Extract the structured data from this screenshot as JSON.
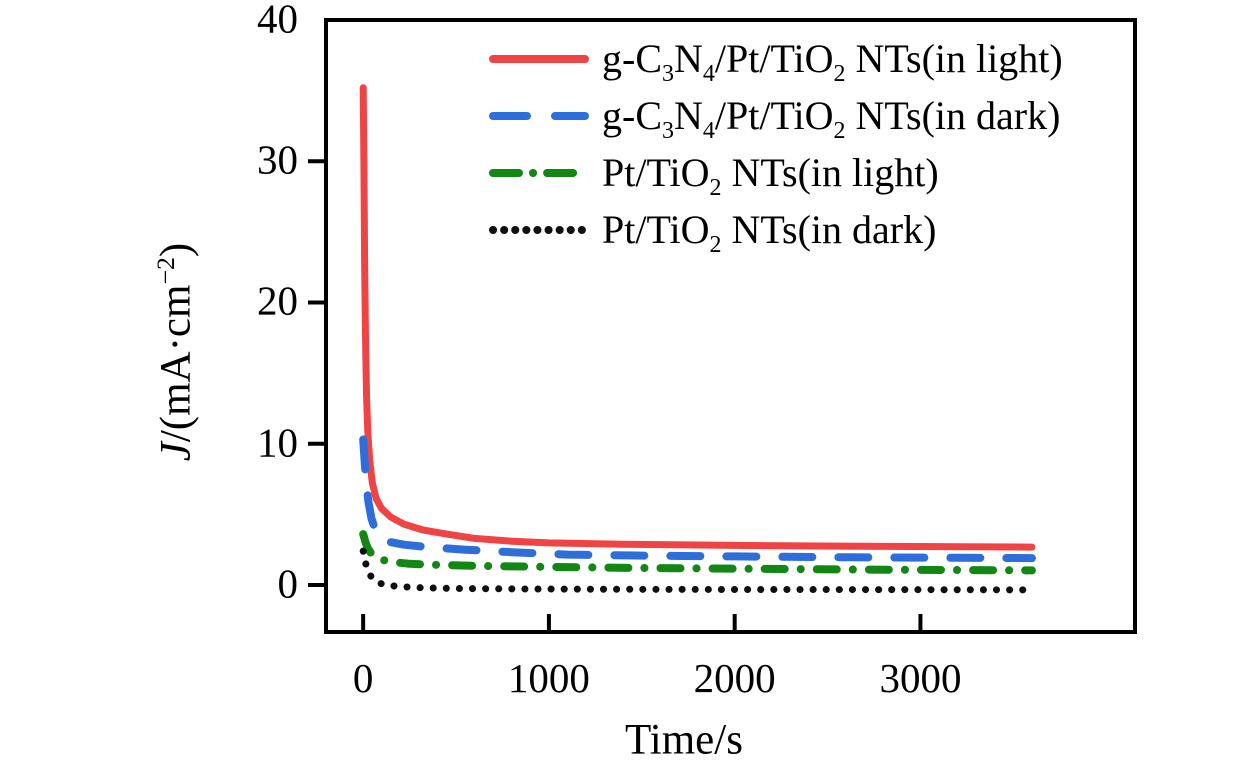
{
  "figure": {
    "background": "#ffffff",
    "frame_color": "#000000",
    "text_color": "#000000"
  },
  "chart_data": {
    "type": "line",
    "title": "",
    "xlabel": "Time/s",
    "ylabel": "J/(mA·cm⁻²)",
    "ylabel_rich": "*J*/(mA·cm^−2^)",
    "xlim": [
      -200,
      4155
    ],
    "ylim": [
      -3.33,
      40
    ],
    "x_ticks": [
      0,
      1000,
      2000,
      3000
    ],
    "y_ticks": [
      0,
      10,
      20,
      30,
      40
    ],
    "grid": false,
    "legend_position": "upper-left-inside",
    "series": [
      {
        "name": "g-C₃N₄/Pt/TiO₂ NTs(in light)",
        "label_rich": "g-C~3~N~4~/Pt/TiO~2~ NTs(in light)",
        "color": "#f04444",
        "style": "solid",
        "points": [
          [
            0,
            35.2
          ],
          [
            4,
            30
          ],
          [
            8,
            23
          ],
          [
            12,
            18
          ],
          [
            18,
            13.5
          ],
          [
            25,
            10.8
          ],
          [
            35,
            8.8
          ],
          [
            50,
            7.2
          ],
          [
            70,
            6.1
          ],
          [
            100,
            5.4
          ],
          [
            150,
            4.8
          ],
          [
            220,
            4.3
          ],
          [
            320,
            3.9
          ],
          [
            450,
            3.6
          ],
          [
            600,
            3.3
          ],
          [
            800,
            3.1
          ],
          [
            1000,
            2.98
          ],
          [
            1400,
            2.88
          ],
          [
            2000,
            2.8
          ],
          [
            2800,
            2.73
          ],
          [
            3600,
            2.68
          ]
        ]
      },
      {
        "name": "g-C₃N₄/Pt/TiO₂ NTs(in dark)",
        "label_rich": "g-C~3~N~4~/Pt/TiO~2~ NTs(in dark)",
        "color": "#2e6edb",
        "style": "dashed",
        "points": [
          [
            0,
            10.3
          ],
          [
            8,
            8.8
          ],
          [
            16,
            7.3
          ],
          [
            28,
            5.9
          ],
          [
            45,
            4.7
          ],
          [
            65,
            3.9
          ],
          [
            95,
            3.4
          ],
          [
            140,
            3.05
          ],
          [
            220,
            2.85
          ],
          [
            350,
            2.68
          ],
          [
            550,
            2.5
          ],
          [
            800,
            2.32
          ],
          [
            1100,
            2.15
          ],
          [
            1500,
            2.08
          ],
          [
            2000,
            2.02
          ],
          [
            2600,
            1.96
          ],
          [
            3200,
            1.92
          ],
          [
            3600,
            1.9
          ]
        ]
      },
      {
        "name": "Pt/TiO₂ NTs(in light)",
        "label_rich": "Pt/TiO~2~ NTs(in light)",
        "color": "#138713",
        "style": "dashdot",
        "points": [
          [
            0,
            3.6
          ],
          [
            12,
            3.05
          ],
          [
            25,
            2.6
          ],
          [
            45,
            2.2
          ],
          [
            75,
            1.92
          ],
          [
            110,
            1.75
          ],
          [
            160,
            1.62
          ],
          [
            250,
            1.5
          ],
          [
            400,
            1.42
          ],
          [
            650,
            1.34
          ],
          [
            1000,
            1.28
          ],
          [
            1500,
            1.2
          ],
          [
            2000,
            1.15
          ],
          [
            2700,
            1.09
          ],
          [
            3600,
            1.03
          ]
        ]
      },
      {
        "name": "Pt/TiO₂ NTs(in dark)",
        "label_rich": "Pt/TiO~2~ NTs(in dark)",
        "color": "#101010",
        "style": "dotted",
        "points": [
          [
            0,
            2.4
          ],
          [
            8,
            1.85
          ],
          [
            18,
            1.3
          ],
          [
            30,
            0.9
          ],
          [
            45,
            0.55
          ],
          [
            65,
            0.3
          ],
          [
            90,
            0.12
          ],
          [
            130,
            -0.02
          ],
          [
            200,
            -0.12
          ],
          [
            320,
            -0.2
          ],
          [
            500,
            -0.25
          ],
          [
            800,
            -0.28
          ],
          [
            1200,
            -0.3
          ],
          [
            2000,
            -0.32
          ],
          [
            2800,
            -0.33
          ],
          [
            3600,
            -0.35
          ]
        ]
      }
    ]
  }
}
